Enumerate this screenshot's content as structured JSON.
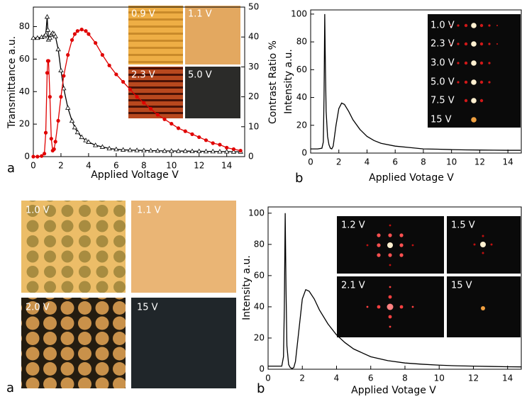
{
  "chart_data": [
    {
      "type": "line",
      "panel_label": "a",
      "x_label": "Applied Voltage V",
      "y_label": "Transmittance a.u.",
      "y2_label": "Contrast Ratio %",
      "xlim": [
        0,
        15.3
      ],
      "xticks": [
        0,
        2,
        4,
        6,
        8,
        10,
        12,
        14
      ],
      "ylim": [
        0,
        92
      ],
      "yticks": [
        0,
        20,
        40,
        60,
        80
      ],
      "y2lim": [
        0,
        50
      ],
      "y2ticks": [
        0,
        10,
        20,
        30,
        40,
        50
      ],
      "x": [
        0,
        0.3,
        0.6,
        0.8,
        0.9,
        1.0,
        1.05,
        1.1,
        1.2,
        1.3,
        1.4,
        1.5,
        1.6,
        1.8,
        2.0,
        2.2,
        2.5,
        2.8,
        3.0,
        3.2,
        3.5,
        3.8,
        4.0,
        4.5,
        5,
        5.5,
        6,
        6.5,
        7,
        7.5,
        8,
        8.5,
        9,
        9.5,
        10,
        10.5,
        11,
        11.5,
        12,
        12.5,
        13,
        13.5,
        14,
        14.5,
        15
      ],
      "series": [
        {
          "color": "#000000",
          "marker": "triangle",
          "values": [
            73,
            73,
            73.5,
            74,
            75,
            86,
            78,
            72,
            73,
            75,
            76,
            75.5,
            74,
            66,
            53,
            42,
            30,
            22,
            18,
            15,
            12,
            10,
            9,
            7,
            6,
            5,
            4.5,
            4.2,
            4,
            3.9,
            3.8,
            3.7,
            3.6,
            3.5,
            3.5,
            3.4,
            3.4,
            3.3,
            3.3,
            3.2,
            3.2,
            3.1,
            3.1,
            3,
            3
          ]
        },
        {
          "color": "#e00000",
          "marker": "circle",
          "axis": "y2",
          "values": [
            0,
            0,
            0.2,
            1,
            8,
            28,
            32,
            32,
            20,
            6,
            2,
            2.5,
            5,
            12,
            20,
            27,
            34,
            39,
            41,
            42,
            42.5,
            42,
            41,
            38,
            34,
            30.5,
            27.5,
            25,
            22.5,
            20,
            18,
            16,
            14,
            12.5,
            11,
            9.5,
            8.5,
            7.5,
            6.5,
            5.5,
            4.5,
            4,
            3,
            2.5,
            2
          ]
        }
      ],
      "insets": [
        {
          "label": "0.9 V"
        },
        {
          "label": "1.1 V"
        },
        {
          "label": "2.3 V"
        },
        {
          "label": "5.0 V"
        }
      ]
    },
    {
      "type": "line",
      "panel_label": "b",
      "x_label": "Applied Votage V",
      "y_label": "Intensity a.u.",
      "xlim": [
        0,
        14.95
      ],
      "xticks": [
        0,
        2,
        4,
        6,
        8,
        10,
        12,
        14
      ],
      "ylim": [
        0,
        103
      ],
      "yticks": [
        0,
        20,
        40,
        60,
        80,
        100
      ],
      "x": [
        0,
        0.5,
        0.8,
        0.9,
        0.95,
        1.0,
        1.05,
        1.1,
        1.2,
        1.3,
        1.4,
        1.5,
        1.6,
        1.8,
        2.0,
        2.2,
        2.4,
        2.7,
        3,
        3.5,
        4,
        4.5,
        5,
        6,
        7,
        8,
        9,
        10,
        11,
        12,
        13,
        14,
        14.9
      ],
      "series": [
        {
          "color": "#000000",
          "values": [
            3,
            3,
            3.5,
            8,
            40,
            100,
            60,
            30,
            12,
            6,
            3.5,
            3,
            5,
            20,
            32,
            36,
            35,
            30,
            24,
            17,
            12,
            9,
            7,
            5,
            4,
            3,
            2.8,
            2.5,
            2.3,
            2.2,
            2.1,
            2,
            2
          ]
        }
      ],
      "insets": [
        {
          "label": "1.0 V"
        },
        {
          "label": "2.3 V"
        },
        {
          "label": "3.0 V"
        },
        {
          "label": "5.0 V"
        },
        {
          "label": "7.5 V"
        },
        {
          "label": "15 V"
        }
      ]
    },
    {
      "type": "line",
      "panel_label": "b",
      "x_label": "Applied Votage V",
      "y_label": "Intensity a.u.",
      "xlim": [
        0,
        14.8
      ],
      "xticks": [
        0,
        2,
        4,
        6,
        8,
        10,
        12,
        14
      ],
      "ylim": [
        0,
        104
      ],
      "yticks": [
        0,
        20,
        40,
        60,
        80,
        100
      ],
      "x": [
        0,
        0.5,
        0.8,
        0.9,
        0.95,
        1.0,
        1.05,
        1.1,
        1.2,
        1.3,
        1.4,
        1.5,
        1.6,
        1.8,
        2.0,
        2.2,
        2.4,
        2.7,
        3,
        3.5,
        4,
        4.5,
        5,
        6,
        7,
        8,
        9,
        10,
        11,
        12,
        13,
        14,
        14.8
      ],
      "series": [
        {
          "color": "#000000",
          "values": [
            2,
            2,
            2,
            8,
            40,
            100,
            50,
            15,
            3,
            1,
            0.5,
            1,
            5,
            25,
            45,
            51,
            50,
            45,
            38,
            29,
            22,
            17,
            13,
            8,
            5.5,
            4,
            3.2,
            2.6,
            2.2,
            2,
            1.8,
            1.6,
            1.5
          ]
        }
      ],
      "insets": [
        {
          "label": "1.2 V"
        },
        {
          "label": "1.5 V"
        },
        {
          "label": "2.1 V"
        },
        {
          "label": "15 V"
        }
      ]
    }
  ],
  "image_panel": {
    "panel_label": "a",
    "images": [
      {
        "label": "1.0 V"
      },
      {
        "label": "1.1 V"
      },
      {
        "label": "2.0 V"
      },
      {
        "label": "15 V"
      }
    ]
  }
}
